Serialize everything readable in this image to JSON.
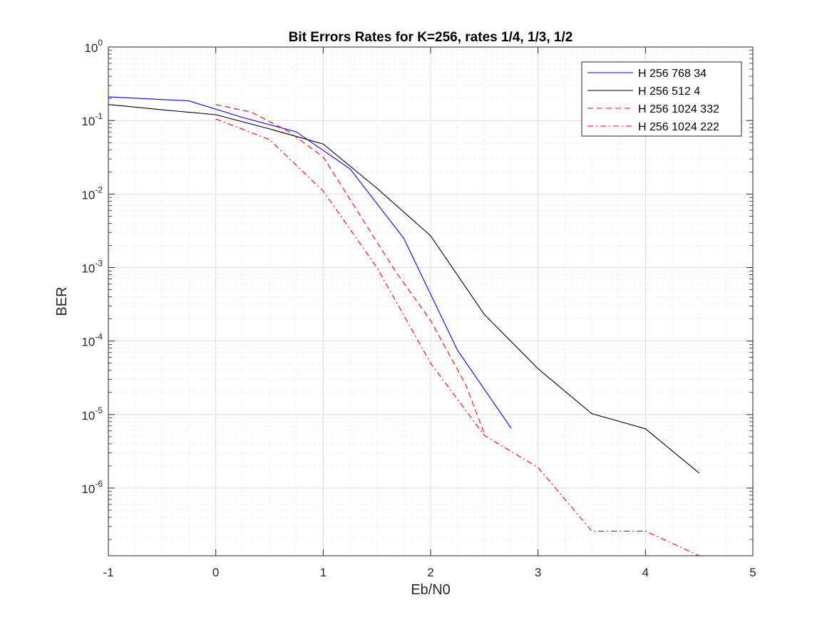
{
  "chart_data": {
    "type": "line",
    "title": "Bit Errors Rates for K=256, rates 1/4, 1/3, 1/2",
    "xlabel": "Eb/N0",
    "ylabel": "BER",
    "xlim": [
      -1,
      5
    ],
    "ylim": [
      1.2e-07,
      1
    ],
    "yscale": "log",
    "grid": true,
    "minor_grid": true,
    "legend_position": "top-right",
    "x_ticks": [
      -1,
      0,
      1,
      2,
      3,
      4,
      5
    ],
    "x_tick_labels": [
      "-1",
      "0",
      "1",
      "2",
      "3",
      "4",
      "5"
    ],
    "y_ticks": [
      {
        "value": 1,
        "base": "10",
        "exponent": "0"
      },
      {
        "value": 0.1,
        "base": "10",
        "exponent": "-1"
      },
      {
        "value": 0.01,
        "base": "10",
        "exponent": "-2"
      },
      {
        "value": 0.001,
        "base": "10",
        "exponent": "-3"
      },
      {
        "value": 0.0001,
        "base": "10",
        "exponent": "-4"
      },
      {
        "value": 1e-05,
        "base": "10",
        "exponent": "-5"
      },
      {
        "value": 1e-06,
        "base": "10",
        "exponent": "-6"
      }
    ],
    "series": [
      {
        "name": "H 256 768 34",
        "color": "#0000ff",
        "dash": "solid",
        "x": [
          -1,
          -0.25,
          0.25,
          0.75,
          1.25,
          1.75,
          2.25,
          2.75
        ],
        "y": [
          0.21,
          0.185,
          0.11,
          0.07,
          0.022,
          0.0025,
          7.5e-05,
          6.5e-06
        ]
      },
      {
        "name": "H 256 512 4",
        "color": "#000000",
        "dash": "solid",
        "x": [
          -1,
          -0.5,
          0,
          0.5,
          1,
          1.5,
          2,
          2.5,
          3,
          3.5,
          4,
          4.5
        ],
        "y": [
          0.165,
          0.14,
          0.12,
          0.077,
          0.048,
          0.012,
          0.0027,
          0.00023,
          4.2e-05,
          1.03e-05,
          6.4e-06,
          1.6e-06
        ]
      },
      {
        "name": "H 256 1024 332",
        "color": "#ff0000",
        "dash": "dashed",
        "x": [
          0,
          0.33,
          0.67,
          1,
          1.33,
          1.67,
          2,
          2.33,
          2.5
        ],
        "y": [
          0.165,
          0.13,
          0.072,
          0.032,
          0.0055,
          0.0009,
          0.00019,
          2.5e-05,
          5.5e-06
        ]
      },
      {
        "name": "H 256 1024 222",
        "color": "#ff0000",
        "dash": "dashdot",
        "x": [
          0,
          0.5,
          1,
          1.5,
          2,
          2.5,
          3,
          3.5,
          4,
          4.5,
          5
        ],
        "y": [
          0.105,
          0.055,
          0.011,
          0.001,
          5e-05,
          5.2e-06,
          1.9e-06,
          2.6e-07,
          2.6e-07,
          1.2e-07,
          1.2e-07
        ]
      }
    ]
  }
}
